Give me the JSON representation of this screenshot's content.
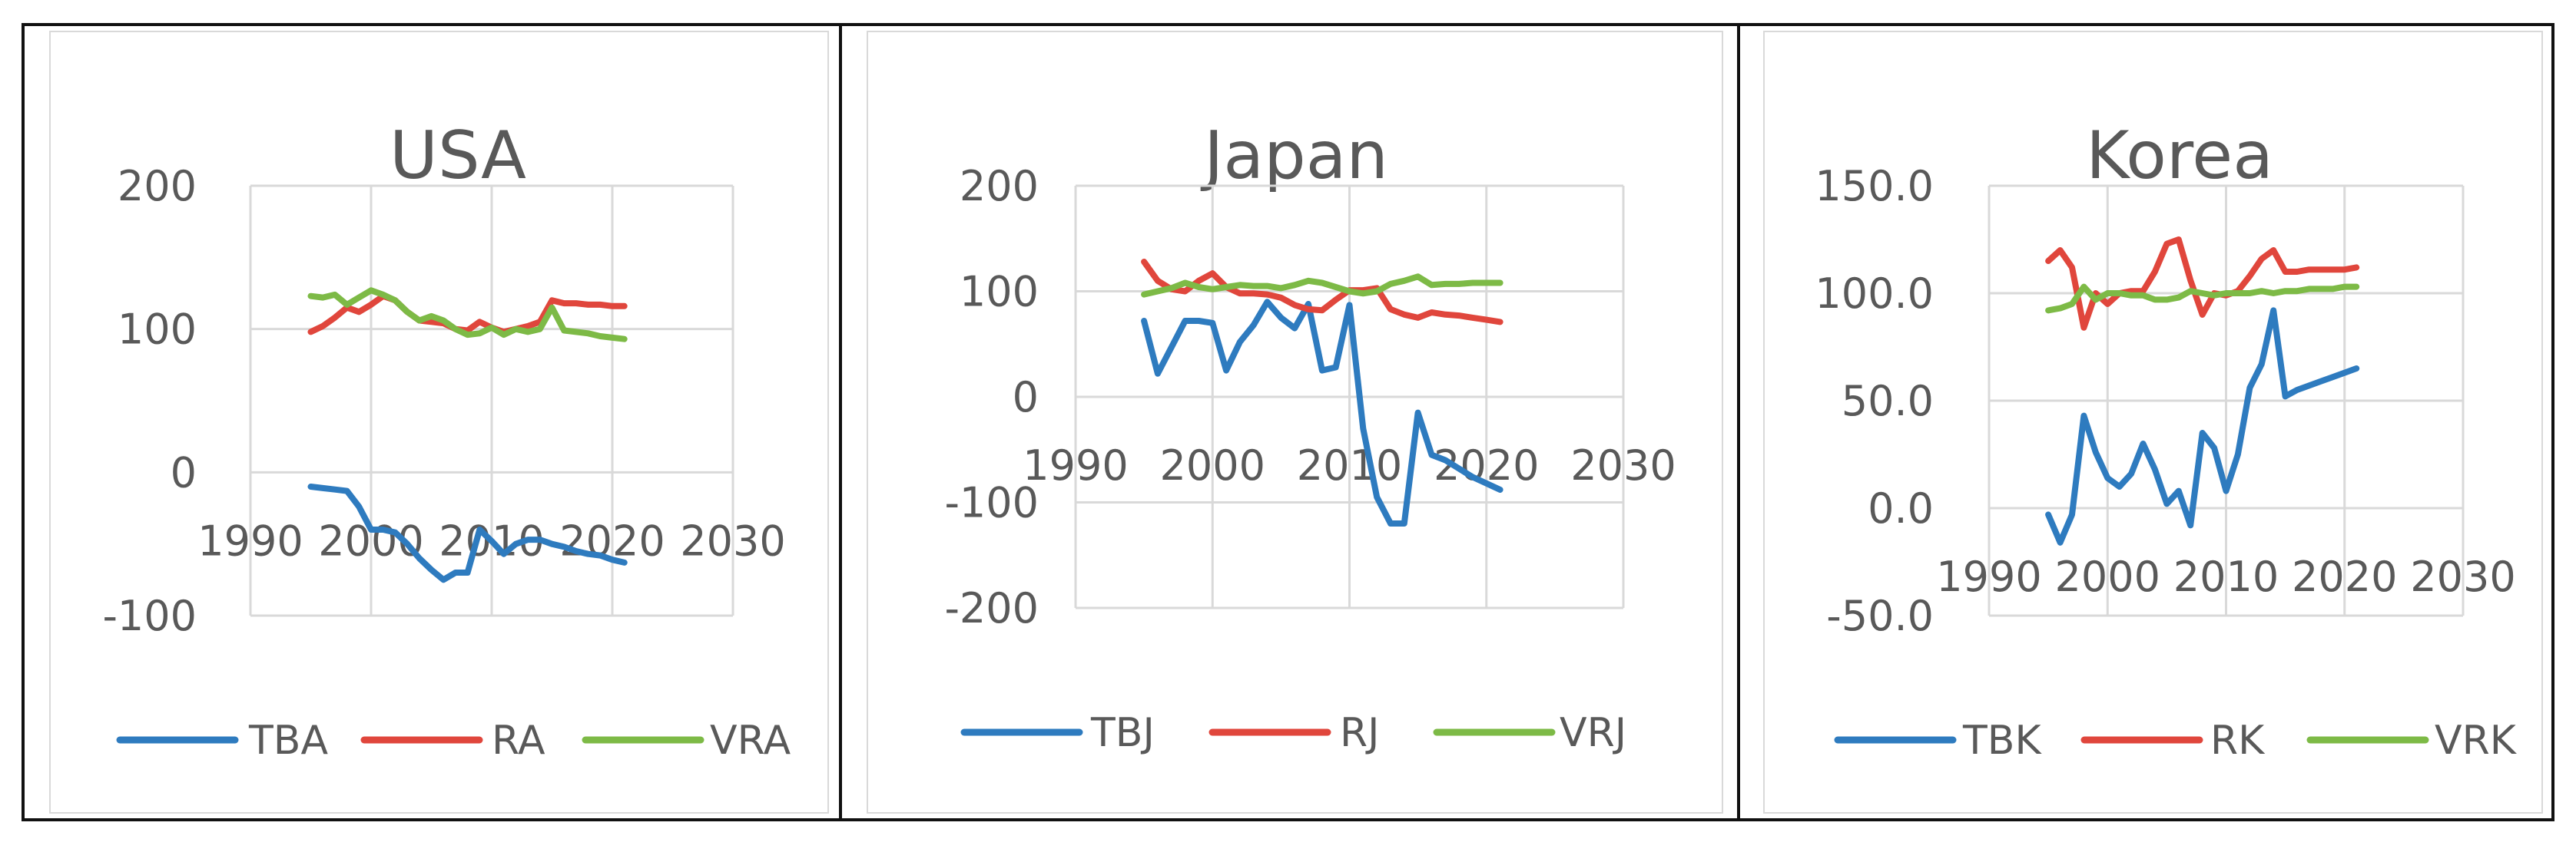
{
  "colors": {
    "TB": "#2e7bbf",
    "R": "#e0463c",
    "VR": "#7dba46"
  },
  "chart_data": [
    {
      "type": "line",
      "title": "USA",
      "xlim": [
        1990,
        2030
      ],
      "ylim": [
        -100,
        200
      ],
      "xticks": [
        "1990",
        "2000",
        "2010",
        "2020",
        "2030"
      ],
      "yticks": [
        "200",
        "100",
        "0",
        "-100"
      ],
      "xlabel": "",
      "ylabel": "",
      "legend": "bottom",
      "series": [
        {
          "name": "TBA",
          "color": "#2e7bbf",
          "x": [
            1995,
            1996,
            1997,
            1998,
            1999,
            2000,
            2001,
            2002,
            2003,
            2004,
            2005,
            2006,
            2007,
            2008,
            2009,
            2010,
            2011,
            2012,
            2013,
            2014,
            2015,
            2016,
            2017,
            2018,
            2019,
            2020,
            2021
          ],
          "y": [
            -10,
            -11,
            -12,
            -13,
            -24,
            -40,
            -40,
            -42,
            -50,
            -60,
            -68,
            -75,
            -70,
            -70,
            -40,
            -48,
            -57,
            -50,
            -47,
            -47,
            -50,
            -52,
            -55,
            -57,
            -58,
            -61,
            -63
          ]
        },
        {
          "name": "RA",
          "color": "#e0463c",
          "x": [
            1995,
            1996,
            1997,
            1998,
            1999,
            2000,
            2001,
            2002,
            2003,
            2004,
            2005,
            2006,
            2007,
            2008,
            2009,
            2010,
            2011,
            2012,
            2013,
            2014,
            2015,
            2016,
            2017,
            2018,
            2019,
            2020,
            2021
          ],
          "y": [
            98,
            102,
            108,
            115,
            112,
            117,
            123,
            120,
            112,
            106,
            105,
            104,
            100,
            99,
            105,
            101,
            98,
            100,
            102,
            105,
            120,
            118,
            118,
            117,
            117,
            116,
            116
          ]
        },
        {
          "name": "VRA",
          "color": "#7dba46",
          "x": [
            1995,
            1996,
            1997,
            1998,
            1999,
            2000,
            2001,
            2002,
            2003,
            2004,
            2005,
            2006,
            2007,
            2008,
            2009,
            2010,
            2011,
            2012,
            2013,
            2014,
            2015,
            2016,
            2017,
            2018,
            2019,
            2020,
            2021
          ],
          "y": [
            123,
            122,
            124,
            117,
            122,
            127,
            124,
            120,
            112,
            106,
            109,
            106,
            100,
            96,
            97,
            101,
            96,
            100,
            98,
            100,
            115,
            99,
            98,
            97,
            95,
            94,
            93
          ]
        }
      ]
    },
    {
      "type": "line",
      "title": "Japan",
      "xlim": [
        1990,
        2030
      ],
      "ylim": [
        -200,
        200
      ],
      "xticks": [
        "1990",
        "2000",
        "2010",
        "2020",
        "2030"
      ],
      "yticks": [
        "200",
        "100",
        "0",
        "-100",
        "-200"
      ],
      "xlabel": "",
      "ylabel": "",
      "legend": "bottom",
      "series": [
        {
          "name": "TBJ",
          "color": "#2e7bbf",
          "x": [
            1995,
            1996,
            1997,
            1998,
            1999,
            2000,
            2001,
            2002,
            2003,
            2004,
            2005,
            2006,
            2007,
            2008,
            2009,
            2010,
            2011,
            2012,
            2013,
            2014,
            2015,
            2016,
            2017,
            2018,
            2019,
            2020,
            2021
          ],
          "y": [
            72,
            22,
            47,
            72,
            72,
            70,
            25,
            52,
            68,
            90,
            75,
            65,
            88,
            25,
            28,
            87,
            -30,
            -95,
            -120,
            -120,
            -15,
            -55,
            -60,
            -68,
            -76,
            -82,
            -88
          ]
        },
        {
          "name": "RJ",
          "color": "#e0463c",
          "x": [
            1995,
            1996,
            1997,
            1998,
            1999,
            2000,
            2001,
            2002,
            2003,
            2004,
            2005,
            2006,
            2007,
            2008,
            2009,
            2010,
            2011,
            2012,
            2013,
            2014,
            2015,
            2016,
            2017,
            2018,
            2019,
            2020,
            2021
          ],
          "y": [
            128,
            110,
            102,
            100,
            110,
            117,
            104,
            98,
            98,
            97,
            94,
            87,
            83,
            82,
            92,
            101,
            101,
            103,
            83,
            78,
            75,
            80,
            78,
            77,
            75,
            73,
            71
          ]
        },
        {
          "name": "VRJ",
          "color": "#7dba46",
          "x": [
            1995,
            1996,
            1997,
            1998,
            1999,
            2000,
            2001,
            2002,
            2003,
            2004,
            2005,
            2006,
            2007,
            2008,
            2009,
            2010,
            2011,
            2012,
            2013,
            2014,
            2015,
            2016,
            2017,
            2018,
            2019,
            2020,
            2021
          ],
          "y": [
            97,
            100,
            103,
            108,
            104,
            102,
            104,
            106,
            105,
            105,
            103,
            106,
            110,
            108,
            104,
            100,
            98,
            100,
            107,
            110,
            114,
            106,
            107,
            107,
            108,
            108,
            108
          ]
        }
      ]
    },
    {
      "type": "line",
      "title": "Korea",
      "xlim": [
        1990,
        2030
      ],
      "ylim": [
        -50,
        150
      ],
      "xticks": [
        "1990",
        "2000",
        "2010",
        "2020",
        "2030"
      ],
      "yticks": [
        "150.0",
        "100.0",
        "50.0",
        "0.0",
        "-50.0"
      ],
      "xlabel": "",
      "ylabel": "",
      "legend": "bottom",
      "series": [
        {
          "name": "TBK",
          "color": "#2e7bbf",
          "x": [
            1995,
            1996,
            1997,
            1998,
            1999,
            2000,
            2001,
            2002,
            2003,
            2004,
            2005,
            2006,
            2007,
            2008,
            2009,
            2010,
            2011,
            2012,
            2013,
            2014,
            2015,
            2016,
            2017,
            2018,
            2019,
            2020,
            2021
          ],
          "y": [
            -3,
            -16,
            -3,
            43,
            26,
            14,
            10,
            16,
            30,
            18,
            2,
            8,
            -8,
            35,
            28,
            8,
            25,
            56,
            67,
            92,
            52,
            55,
            57,
            59,
            61,
            63,
            65
          ]
        },
        {
          "name": "RK",
          "color": "#e0463c",
          "x": [
            1995,
            1996,
            1997,
            1998,
            1999,
            2000,
            2001,
            2002,
            2003,
            2004,
            2005,
            2006,
            2007,
            2008,
            2009,
            2010,
            2011,
            2012,
            2013,
            2014,
            2015,
            2016,
            2017,
            2018,
            2019,
            2020,
            2021
          ],
          "y": [
            115,
            120,
            112,
            84,
            100,
            95,
            100,
            101,
            101,
            110,
            123,
            125,
            106,
            90,
            100,
            99,
            101,
            108,
            116,
            120,
            110,
            110,
            111,
            111,
            111,
            111,
            112
          ]
        },
        {
          "name": "VRK",
          "color": "#7dba46",
          "x": [
            1995,
            1996,
            1997,
            1998,
            1999,
            2000,
            2001,
            2002,
            2003,
            2004,
            2005,
            2006,
            2007,
            2008,
            2009,
            2010,
            2011,
            2012,
            2013,
            2014,
            2015,
            2016,
            2017,
            2018,
            2019,
            2020,
            2021
          ],
          "y": [
            92,
            93,
            95,
            103,
            97,
            100,
            100,
            99,
            99,
            97,
            97,
            98,
            101,
            100,
            99,
            100,
            100,
            100,
            101,
            100,
            101,
            101,
            102,
            102,
            102,
            103,
            103
          ]
        }
      ]
    }
  ]
}
